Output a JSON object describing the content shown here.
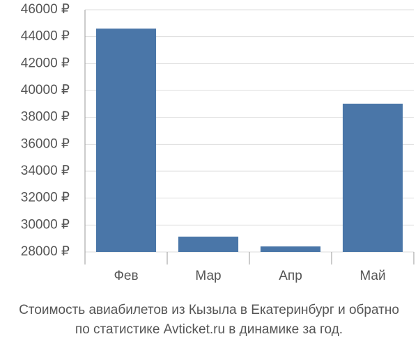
{
  "chart_data": {
    "type": "bar",
    "title": [
      "Стоимость авиабилетов из Кызыла в Екатеринбург и обратно",
      "по статистике Avticket.ru в динамике за год."
    ],
    "categories": [
      "Фев",
      "Мар",
      "Апр",
      "Май"
    ],
    "values": [
      44600,
      29140,
      28410,
      39020
    ],
    "color": "#4a76a8",
    "ylim": [
      28000,
      46000
    ],
    "yticks": [
      {
        "value": 28000,
        "label": "28000 ₽"
      },
      {
        "value": 30000,
        "label": "30000 ₽"
      },
      {
        "value": 32000,
        "label": "32000 ₽"
      },
      {
        "value": 34000,
        "label": "34000 ₽"
      },
      {
        "value": 36000,
        "label": "36000 ₽"
      },
      {
        "value": 38000,
        "label": "38000 ₽"
      },
      {
        "value": 40000,
        "label": "40000 ₽"
      },
      {
        "value": 42000,
        "label": "42000 ₽"
      },
      {
        "value": 44000,
        "label": "44000 ₽"
      },
      {
        "value": 46000,
        "label": "46000 ₽"
      }
    ],
    "grid": true
  }
}
